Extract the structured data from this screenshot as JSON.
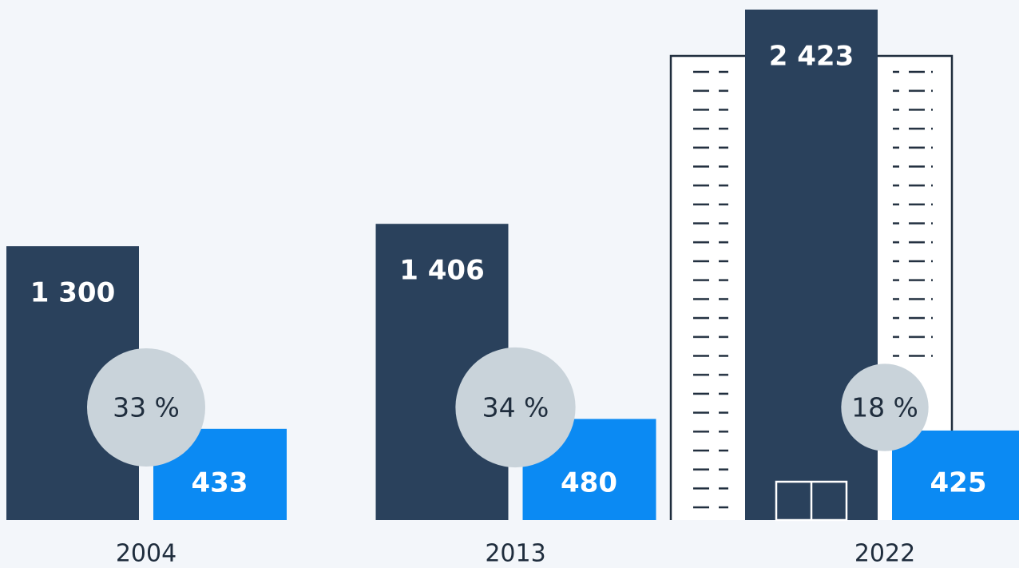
{
  "chart_data": {
    "type": "bar",
    "categories": [
      "2004",
      "2013",
      "2022"
    ],
    "series": [
      {
        "color": "#2a415c",
        "values": [
          1300,
          1406,
          2423
        ],
        "value_labels": [
          "1 300",
          "1 406",
          "2 423"
        ]
      },
      {
        "color": "#0b8af3",
        "values": [
          433,
          480,
          425
        ]
      },
      {
        "color": "#c9d3da",
        "values": [
          33,
          34,
          18
        ],
        "value_labels": [
          "33 %",
          "34 %",
          "18 %"
        ]
      }
    ]
  }
}
